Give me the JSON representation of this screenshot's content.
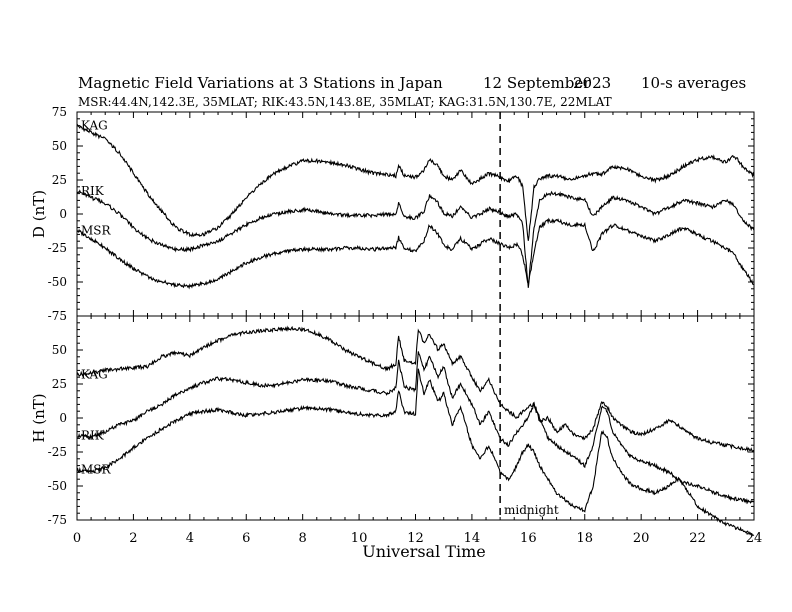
{
  "header": {
    "title": "Magnetic Field Variations at 3 Stations in Japan",
    "date": "12 September",
    "year": "2023",
    "averaging": "10-s averages",
    "stations_line": "MSR:44.4N,142.3E, 35MLAT;  RIK:43.5N,143.8E, 35MLAT;  KAG:31.5N,130.7E, 22MLAT"
  },
  "annotations": {
    "midnight": "midnight"
  },
  "chart_data": [
    {
      "type": "line",
      "panel": "D",
      "ylabel": "D (nT)",
      "ylim": [
        -75,
        75
      ],
      "y_ticks": [
        75,
        50,
        25,
        0,
        -25,
        -50,
        -75
      ],
      "xlim": [
        0,
        24
      ],
      "grid": false,
      "series": [
        {
          "name": "KAG",
          "x": [
            0,
            0.5,
            1,
            1.5,
            2,
            2.5,
            3,
            3.5,
            4,
            4.5,
            5,
            5.5,
            6,
            6.5,
            7,
            7.5,
            8,
            8.5,
            9,
            9.5,
            10,
            10.5,
            11,
            11.3,
            11.4,
            11.6,
            12,
            12.3,
            12.5,
            12.8,
            13,
            13.3,
            13.6,
            14,
            14.3,
            14.6,
            15,
            15.3,
            15.6,
            15.8,
            16,
            16.2,
            16.4,
            16.7,
            17,
            17.5,
            18,
            18.3,
            18.6,
            19,
            19.5,
            20,
            20.5,
            21,
            21.5,
            22,
            22.5,
            23,
            23.3,
            23.6,
            24
          ],
          "y": [
            65,
            60,
            55,
            45,
            30,
            15,
            2,
            -10,
            -15,
            -15,
            -10,
            0,
            12,
            22,
            30,
            35,
            39,
            39,
            38,
            36,
            33,
            30,
            29,
            28,
            36,
            28,
            27,
            32,
            40,
            35,
            28,
            25,
            32,
            22,
            26,
            30,
            27,
            24,
            28,
            20,
            -20,
            20,
            26,
            28,
            28,
            25,
            28,
            30,
            29,
            35,
            33,
            28,
            25,
            28,
            35,
            40,
            42,
            38,
            43,
            35,
            28
          ]
        },
        {
          "name": "RIK",
          "x": [
            0,
            0.5,
            1,
            1.5,
            2,
            2.5,
            3,
            3.5,
            4,
            4.5,
            5,
            5.5,
            6,
            6.5,
            7,
            7.5,
            8,
            8.5,
            9,
            9.5,
            10,
            10.5,
            11,
            11.3,
            11.4,
            11.6,
            12,
            12.3,
            12.5,
            12.8,
            13,
            13.3,
            13.6,
            14,
            14.3,
            14.6,
            15,
            15.3,
            15.6,
            15.8,
            16,
            16.2,
            16.4,
            16.7,
            17,
            17.5,
            18,
            18.3,
            18.6,
            19,
            19.5,
            20,
            20.5,
            21,
            21.5,
            22,
            22.5,
            23,
            23.3,
            23.6,
            24
          ],
          "y": [
            17,
            12,
            8,
            0,
            -10,
            -18,
            -23,
            -26,
            -26,
            -23,
            -20,
            -14,
            -8,
            -3,
            0,
            2,
            3,
            2,
            0,
            -1,
            -1,
            -1,
            0,
            -1,
            8,
            -2,
            -3,
            2,
            14,
            8,
            1,
            -2,
            6,
            -3,
            0,
            4,
            1,
            -2,
            0,
            -8,
            -54,
            -10,
            10,
            15,
            15,
            12,
            10,
            -2,
            5,
            12,
            10,
            5,
            0,
            5,
            10,
            8,
            5,
            10,
            6,
            -5,
            -12
          ]
        },
        {
          "name": "MSR",
          "x": [
            0,
            0.5,
            1,
            1.5,
            2,
            2.5,
            3,
            3.5,
            4,
            4.5,
            5,
            5.5,
            6,
            6.5,
            7,
            7.5,
            8,
            8.5,
            9,
            9.5,
            10,
            10.5,
            11,
            11.3,
            11.4,
            11.6,
            12,
            12.3,
            12.5,
            12.8,
            13,
            13.3,
            13.6,
            14,
            14.3,
            14.6,
            15,
            15.3,
            15.6,
            15.8,
            16,
            16.2,
            16.4,
            16.7,
            17,
            17.5,
            18,
            18.3,
            18.6,
            19,
            19.5,
            20,
            20.5,
            21,
            21.5,
            22,
            22.5,
            23,
            23.3,
            23.6,
            24
          ],
          "y": [
            -12,
            -18,
            -25,
            -33,
            -40,
            -46,
            -50,
            -52,
            -53,
            -51,
            -48,
            -42,
            -36,
            -32,
            -29,
            -27,
            -26,
            -26,
            -26,
            -25,
            -25,
            -26,
            -25,
            -25,
            -17,
            -26,
            -27,
            -20,
            -8,
            -15,
            -23,
            -26,
            -18,
            -26,
            -22,
            -18,
            -22,
            -25,
            -22,
            -30,
            -52,
            -28,
            -10,
            -5,
            -5,
            -8,
            -8,
            -28,
            -15,
            -8,
            -12,
            -16,
            -20,
            -15,
            -10,
            -15,
            -20,
            -25,
            -30,
            -40,
            -52
          ]
        }
      ]
    },
    {
      "type": "line",
      "panel": "H",
      "ylabel": "H (nT)",
      "ylim": [
        -75,
        75
      ],
      "y_ticks": [
        50,
        25,
        0,
        -25,
        -50,
        -75
      ],
      "xlim": [
        0,
        24
      ],
      "xlabel": "Universal Time",
      "x_ticks": [
        0,
        2,
        4,
        6,
        8,
        10,
        12,
        14,
        16,
        18,
        20,
        22,
        24
      ],
      "midnight_ut": 15,
      "grid": false,
      "series": [
        {
          "name": "KAG",
          "x": [
            0,
            0.5,
            1,
            1.5,
            2,
            2.5,
            3,
            3.5,
            4,
            4.5,
            5,
            5.5,
            6,
            6.5,
            7,
            7.5,
            8,
            8.5,
            9,
            9.5,
            10,
            10.5,
            11,
            11.3,
            11.4,
            11.6,
            12,
            12.1,
            12.3,
            12.5,
            12.8,
            13,
            13.3,
            13.6,
            14,
            14.3,
            14.6,
            15,
            15.3,
            15.6,
            15.8,
            16,
            16.2,
            16.4,
            16.7,
            17,
            17.3,
            17.6,
            18,
            18.3,
            18.6,
            18.8,
            19,
            19.3,
            19.6,
            20,
            20.5,
            21,
            21.3,
            21.6,
            22,
            22.5,
            23,
            23.5,
            24
          ],
          "y": [
            32,
            33,
            35,
            36,
            37,
            38,
            45,
            48,
            46,
            52,
            57,
            61,
            63,
            64,
            65,
            66,
            65,
            62,
            57,
            50,
            45,
            40,
            36,
            40,
            60,
            42,
            40,
            65,
            55,
            62,
            50,
            55,
            40,
            45,
            30,
            20,
            28,
            10,
            5,
            0,
            5,
            8,
            10,
            -2,
            0,
            -10,
            -5,
            -12,
            -15,
            -8,
            12,
            8,
            0,
            -5,
            -10,
            -12,
            -8,
            -2,
            -5,
            -10,
            -15,
            -18,
            -20,
            -22,
            -24
          ]
        },
        {
          "name": "RIK",
          "x": [
            0,
            0.5,
            1,
            1.5,
            2,
            2.5,
            3,
            3.5,
            4,
            4.5,
            5,
            5.5,
            6,
            6.5,
            7,
            7.5,
            8,
            8.5,
            9,
            9.5,
            10,
            10.5,
            11,
            11.3,
            11.4,
            11.6,
            12,
            12.1,
            12.3,
            12.5,
            12.8,
            13,
            13.3,
            13.6,
            14,
            14.3,
            14.6,
            15,
            15.3,
            15.6,
            15.8,
            16,
            16.2,
            16.4,
            16.7,
            17,
            17.3,
            17.6,
            18,
            18.3,
            18.6,
            18.8,
            19,
            19.3,
            19.6,
            20,
            20.5,
            21,
            21.3,
            21.6,
            22,
            22.5,
            23,
            23.5,
            24
          ],
          "y": [
            -13,
            -14,
            -10,
            -5,
            -2,
            5,
            10,
            17,
            22,
            26,
            29,
            28,
            26,
            24,
            24,
            26,
            28,
            28,
            27,
            24,
            22,
            20,
            18,
            22,
            42,
            23,
            20,
            50,
            35,
            45,
            30,
            38,
            15,
            25,
            10,
            -5,
            5,
            -15,
            -20,
            -10,
            -5,
            0,
            10,
            0,
            -15,
            -20,
            -25,
            -28,
            -35,
            -20,
            8,
            5,
            -10,
            -20,
            -28,
            -32,
            -35,
            -40,
            -45,
            -48,
            -50,
            -54,
            -58,
            -60,
            -62
          ]
        },
        {
          "name": "MSR",
          "x": [
            0,
            0.5,
            1,
            1.5,
            2,
            2.5,
            3,
            3.5,
            4,
            4.5,
            5,
            5.5,
            6,
            6.5,
            7,
            7.5,
            8,
            8.5,
            9,
            9.5,
            10,
            10.5,
            11,
            11.3,
            11.4,
            11.6,
            12,
            12.1,
            12.3,
            12.5,
            12.8,
            13,
            13.3,
            13.6,
            14,
            14.3,
            14.6,
            15,
            15.3,
            15.6,
            15.8,
            16,
            16.2,
            16.4,
            16.7,
            17,
            17.3,
            17.6,
            18,
            18.3,
            18.6,
            18.8,
            19,
            19.3,
            19.6,
            20,
            20.5,
            21,
            21.3,
            21.6,
            22,
            22.5,
            23,
            23.5,
            24
          ],
          "y": [
            -38,
            -40,
            -36,
            -30,
            -22,
            -15,
            -8,
            -2,
            3,
            5,
            6,
            4,
            2,
            3,
            4,
            6,
            7,
            7,
            6,
            4,
            3,
            2,
            2,
            5,
            20,
            4,
            3,
            35,
            18,
            28,
            12,
            18,
            -5,
            8,
            -20,
            -30,
            -20,
            -40,
            -45,
            -35,
            -25,
            -20,
            -25,
            -35,
            -45,
            -55,
            -60,
            -65,
            -68,
            -50,
            -10,
            -15,
            -30,
            -40,
            -48,
            -52,
            -55,
            -50,
            -45,
            -52,
            -65,
            -72,
            -78,
            -82,
            -86
          ]
        }
      ]
    }
  ]
}
